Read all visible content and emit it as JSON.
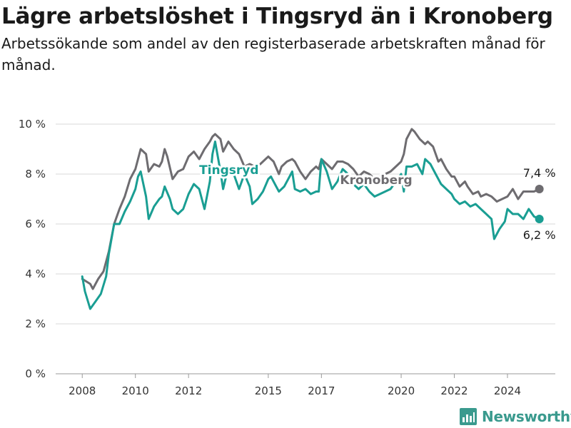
{
  "title": "Lägre arbetslöshet i Tingsryd än i Kronoberg",
  "subtitle": "Arbetssökande som andel av den registerbaserade arbetskraften månad för månad.",
  "brand": "Newsworthy",
  "colors": {
    "tingsryd": "#1a9e93",
    "kronoberg": "#6e6c70",
    "grid": "#d9d9d9",
    "brand": "#3a9a8e"
  },
  "chart_data": {
    "type": "line",
    "title": "Lägre arbetslöshet i Tingsryd än i Kronoberg",
    "subtitle": "Arbetssökande som andel av den registerbaserade arbetskraften månad för månad.",
    "xlabel": "",
    "ylabel": "",
    "x_unit": "year (monthly data)",
    "xlim": [
      2007.0,
      2025.8
    ],
    "ylim": [
      0,
      10
    ],
    "x_ticks": [
      2008,
      2010,
      2012,
      2015,
      2017,
      2020,
      2022,
      2024
    ],
    "y_ticks": [
      0,
      2,
      4,
      6,
      8,
      10
    ],
    "y_tick_labels": [
      "0 %",
      "2 %",
      "4 %",
      "6 %",
      "8 %",
      "10 %"
    ],
    "grid": "horizontal",
    "end_labels": {
      "kronoberg": "7,4 %",
      "tingsryd": "6,2 %"
    },
    "series": [
      {
        "name": "Kronoberg",
        "color": "#6e6c70",
        "points": [
          [
            2008.0,
            3.8
          ],
          [
            2008.3,
            3.6
          ],
          [
            2008.4,
            3.4
          ],
          [
            2008.6,
            3.8
          ],
          [
            2008.8,
            4.1
          ],
          [
            2009.0,
            4.9
          ],
          [
            2009.2,
            6.0
          ],
          [
            2009.4,
            6.6
          ],
          [
            2009.6,
            7.1
          ],
          [
            2009.8,
            7.8
          ],
          [
            2010.0,
            8.2
          ],
          [
            2010.1,
            8.6
          ],
          [
            2010.2,
            9.0
          ],
          [
            2010.4,
            8.8
          ],
          [
            2010.5,
            8.1
          ],
          [
            2010.7,
            8.4
          ],
          [
            2010.9,
            8.3
          ],
          [
            2011.0,
            8.5
          ],
          [
            2011.1,
            9.0
          ],
          [
            2011.2,
            8.7
          ],
          [
            2011.4,
            7.8
          ],
          [
            2011.6,
            8.1
          ],
          [
            2011.8,
            8.2
          ],
          [
            2012.0,
            8.7
          ],
          [
            2012.2,
            8.9
          ],
          [
            2012.4,
            8.6
          ],
          [
            2012.6,
            9.0
          ],
          [
            2012.8,
            9.3
          ],
          [
            2012.9,
            9.5
          ],
          [
            2013.0,
            9.6
          ],
          [
            2013.2,
            9.4
          ],
          [
            2013.3,
            8.9
          ],
          [
            2013.5,
            9.3
          ],
          [
            2013.7,
            9.0
          ],
          [
            2013.9,
            8.8
          ],
          [
            2014.1,
            8.3
          ],
          [
            2014.3,
            8.4
          ],
          [
            2014.5,
            8.3
          ],
          [
            2014.7,
            8.4
          ],
          [
            2014.9,
            8.6
          ],
          [
            2015.0,
            8.7
          ],
          [
            2015.2,
            8.5
          ],
          [
            2015.4,
            8.0
          ],
          [
            2015.5,
            8.3
          ],
          [
            2015.7,
            8.5
          ],
          [
            2015.9,
            8.6
          ],
          [
            2016.0,
            8.5
          ],
          [
            2016.2,
            8.1
          ],
          [
            2016.4,
            7.8
          ],
          [
            2016.6,
            8.1
          ],
          [
            2016.8,
            8.3
          ],
          [
            2016.9,
            8.2
          ],
          [
            2017.0,
            8.6
          ],
          [
            2017.2,
            8.4
          ],
          [
            2017.4,
            8.2
          ],
          [
            2017.6,
            8.5
          ],
          [
            2017.8,
            8.5
          ],
          [
            2018.0,
            8.4
          ],
          [
            2018.2,
            8.2
          ],
          [
            2018.4,
            7.9
          ],
          [
            2018.6,
            8.1
          ],
          [
            2018.8,
            8.0
          ],
          [
            2019.0,
            7.8
          ],
          [
            2019.2,
            7.9
          ],
          [
            2019.4,
            8.0
          ],
          [
            2019.6,
            8.1
          ],
          [
            2019.8,
            8.3
          ],
          [
            2020.0,
            8.5
          ],
          [
            2020.1,
            8.8
          ],
          [
            2020.2,
            9.4
          ],
          [
            2020.4,
            9.8
          ],
          [
            2020.5,
            9.7
          ],
          [
            2020.7,
            9.4
          ],
          [
            2020.9,
            9.2
          ],
          [
            2021.0,
            9.3
          ],
          [
            2021.2,
            9.1
          ],
          [
            2021.4,
            8.5
          ],
          [
            2021.5,
            8.6
          ],
          [
            2021.7,
            8.2
          ],
          [
            2021.9,
            7.9
          ],
          [
            2022.0,
            7.9
          ],
          [
            2022.2,
            7.5
          ],
          [
            2022.4,
            7.7
          ],
          [
            2022.5,
            7.5
          ],
          [
            2022.7,
            7.2
          ],
          [
            2022.9,
            7.3
          ],
          [
            2023.0,
            7.1
          ],
          [
            2023.2,
            7.2
          ],
          [
            2023.4,
            7.1
          ],
          [
            2023.6,
            6.9
          ],
          [
            2023.8,
            7.0
          ],
          [
            2024.0,
            7.1
          ],
          [
            2024.2,
            7.4
          ],
          [
            2024.4,
            7.0
          ],
          [
            2024.6,
            7.3
          ],
          [
            2024.8,
            7.3
          ],
          [
            2025.0,
            7.3
          ],
          [
            2025.2,
            7.4
          ]
        ]
      },
      {
        "name": "Tingsryd",
        "color": "#1a9e93",
        "points": [
          [
            2008.0,
            3.9
          ],
          [
            2008.1,
            3.3
          ],
          [
            2008.3,
            2.6
          ],
          [
            2008.5,
            2.9
          ],
          [
            2008.7,
            3.2
          ],
          [
            2008.9,
            3.9
          ],
          [
            2009.0,
            4.8
          ],
          [
            2009.2,
            6.0
          ],
          [
            2009.4,
            6.0
          ],
          [
            2009.6,
            6.5
          ],
          [
            2009.8,
            6.9
          ],
          [
            2010.0,
            7.4
          ],
          [
            2010.1,
            7.9
          ],
          [
            2010.2,
            8.1
          ],
          [
            2010.4,
            7.1
          ],
          [
            2010.5,
            6.2
          ],
          [
            2010.7,
            6.7
          ],
          [
            2010.9,
            7.0
          ],
          [
            2011.0,
            7.1
          ],
          [
            2011.1,
            7.5
          ],
          [
            2011.3,
            7.0
          ],
          [
            2011.4,
            6.6
          ],
          [
            2011.6,
            6.4
          ],
          [
            2011.8,
            6.6
          ],
          [
            2012.0,
            7.2
          ],
          [
            2012.2,
            7.6
          ],
          [
            2012.4,
            7.4
          ],
          [
            2012.6,
            6.6
          ],
          [
            2012.8,
            7.7
          ],
          [
            2012.9,
            8.8
          ],
          [
            2013.0,
            9.3
          ],
          [
            2013.2,
            8.1
          ],
          [
            2013.3,
            7.4
          ],
          [
            2013.5,
            8.3
          ],
          [
            2013.7,
            8.0
          ],
          [
            2013.9,
            7.4
          ],
          [
            2014.1,
            8.0
          ],
          [
            2014.3,
            7.5
          ],
          [
            2014.4,
            6.8
          ],
          [
            2014.6,
            7.0
          ],
          [
            2014.8,
            7.3
          ],
          [
            2015.0,
            7.8
          ],
          [
            2015.1,
            7.9
          ],
          [
            2015.3,
            7.5
          ],
          [
            2015.4,
            7.3
          ],
          [
            2015.6,
            7.5
          ],
          [
            2015.8,
            7.9
          ],
          [
            2015.9,
            8.1
          ],
          [
            2016.0,
            7.4
          ],
          [
            2016.2,
            7.3
          ],
          [
            2016.4,
            7.4
          ],
          [
            2016.6,
            7.2
          ],
          [
            2016.8,
            7.3
          ],
          [
            2016.9,
            7.3
          ],
          [
            2017.0,
            8.6
          ],
          [
            2017.2,
            8.1
          ],
          [
            2017.4,
            7.4
          ],
          [
            2017.6,
            7.7
          ],
          [
            2017.8,
            8.2
          ],
          [
            2018.0,
            8.0
          ],
          [
            2018.2,
            7.6
          ],
          [
            2018.4,
            7.4
          ],
          [
            2018.6,
            7.6
          ],
          [
            2018.8,
            7.3
          ],
          [
            2019.0,
            7.1
          ],
          [
            2019.2,
            7.2
          ],
          [
            2019.4,
            7.3
          ],
          [
            2019.6,
            7.4
          ],
          [
            2019.8,
            7.7
          ],
          [
            2020.0,
            8.0
          ],
          [
            2020.1,
            7.3
          ],
          [
            2020.2,
            8.3
          ],
          [
            2020.4,
            8.3
          ],
          [
            2020.6,
            8.4
          ],
          [
            2020.8,
            8.0
          ],
          [
            2020.9,
            8.6
          ],
          [
            2021.1,
            8.4
          ],
          [
            2021.3,
            8.0
          ],
          [
            2021.5,
            7.6
          ],
          [
            2021.7,
            7.4
          ],
          [
            2021.9,
            7.2
          ],
          [
            2022.0,
            7.0
          ],
          [
            2022.2,
            6.8
          ],
          [
            2022.4,
            6.9
          ],
          [
            2022.6,
            6.7
          ],
          [
            2022.8,
            6.8
          ],
          [
            2023.0,
            6.6
          ],
          [
            2023.2,
            6.4
          ],
          [
            2023.4,
            6.2
          ],
          [
            2023.5,
            5.4
          ],
          [
            2023.7,
            5.8
          ],
          [
            2023.9,
            6.1
          ],
          [
            2024.0,
            6.6
          ],
          [
            2024.2,
            6.4
          ],
          [
            2024.4,
            6.4
          ],
          [
            2024.6,
            6.2
          ],
          [
            2024.8,
            6.6
          ],
          [
            2025.0,
            6.3
          ],
          [
            2025.2,
            6.2
          ]
        ]
      }
    ]
  }
}
